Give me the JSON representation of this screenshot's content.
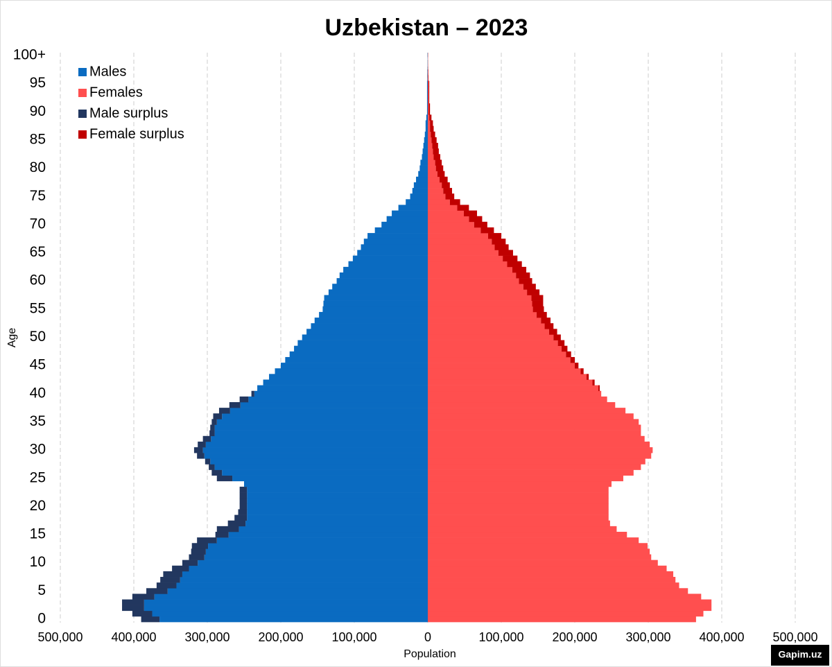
{
  "chart_data": {
    "type": "pyramid",
    "title": "Uzbekistan – 2023",
    "xlabel": "Population",
    "ylabel": "Age",
    "watermark": "Gapim.uz",
    "categories": [
      "0",
      null,
      null,
      null,
      null,
      "5",
      null,
      null,
      null,
      null,
      "10",
      null,
      null,
      null,
      null,
      "15",
      null,
      null,
      null,
      null,
      "20",
      null,
      null,
      null,
      null,
      "25",
      null,
      null,
      null,
      null,
      "30",
      null,
      null,
      null,
      null,
      "35",
      null,
      null,
      null,
      null,
      "40",
      null,
      null,
      null,
      null,
      "45",
      null,
      null,
      null,
      null,
      "50",
      null,
      null,
      null,
      null,
      "55",
      null,
      null,
      null,
      null,
      "60",
      null,
      null,
      null,
      null,
      "65",
      null,
      null,
      null,
      null,
      "70",
      null,
      null,
      null,
      null,
      "75",
      null,
      null,
      null,
      null,
      "80",
      null,
      null,
      null,
      null,
      "85",
      null,
      null,
      null,
      null,
      "90",
      null,
      null,
      null,
      null,
      "95",
      null,
      null,
      null,
      null,
      "100+"
    ],
    "series": [
      {
        "name": "Males",
        "color": "#0a6bc1",
        "values": [
          -365000,
          -375000,
          -386000,
          -386000,
          -372000,
          -354000,
          -342000,
          -337000,
          -334000,
          -325000,
          -313000,
          -304000,
          -302000,
          -299000,
          -287000,
          -271000,
          -257000,
          -248000,
          -246000,
          -246000,
          -246000,
          -246000,
          -246000,
          -246000,
          -250000,
          -266000,
          -280000,
          -290000,
          -296000,
          -304000,
          -306000,
          -302000,
          -295000,
          -290000,
          -290000,
          -287000,
          -280000,
          -269000,
          -255000,
          -244000,
          -236000,
          -232000,
          -224000,
          -216000,
          -208000,
          -200000,
          -194000,
          -188000,
          -182000,
          -177000,
          -171000,
          -165000,
          -159000,
          -154000,
          -148000,
          -143000,
          -142000,
          -141000,
          -135000,
          -130000,
          -124000,
          -120000,
          -115000,
          -108000,
          -102000,
          -96000,
          -91000,
          -87000,
          -82000,
          -72000,
          -63000,
          -56000,
          -49000,
          -40000,
          -30000,
          -24000,
          -21000,
          -19000,
          -16000,
          -13000,
          -11000,
          -10000,
          -8000,
          -7000,
          -6000,
          -5000,
          -4000,
          -3000,
          -3000,
          -2000,
          -1000,
          -1000,
          -1000,
          -1000,
          -1000,
          -1000,
          -500,
          -500,
          -300,
          -200,
          -300
        ]
      },
      {
        "name": "Females",
        "color": "#ff4f4f",
        "values": [
          365000,
          375000,
          386000,
          386000,
          372000,
          354000,
          342000,
          337000,
          334000,
          325000,
          313000,
          304000,
          302000,
          299000,
          287000,
          271000,
          257000,
          248000,
          246000,
          246000,
          246000,
          246000,
          246000,
          246000,
          250000,
          266000,
          280000,
          290000,
          296000,
          304000,
          306000,
          302000,
          295000,
          290000,
          290000,
          287000,
          280000,
          269000,
          255000,
          244000,
          236000,
          232000,
          224000,
          216000,
          208000,
          200000,
          194000,
          188000,
          182000,
          177000,
          171000,
          165000,
          159000,
          154000,
          148000,
          143000,
          142000,
          141000,
          135000,
          130000,
          124000,
          120000,
          115000,
          108000,
          102000,
          96000,
          91000,
          87000,
          82000,
          72000,
          63000,
          56000,
          49000,
          40000,
          30000,
          24000,
          21000,
          19000,
          16000,
          13000,
          11000,
          10000,
          8000,
          7000,
          6000,
          5000,
          4000,
          3000,
          3000,
          2000,
          1000,
          1000,
          1000,
          1000,
          1000,
          1000,
          500,
          500,
          300,
          200,
          300
        ]
      },
      {
        "name": "Male surplus",
        "color": "#22375f",
        "values": [
          -25000,
          -27000,
          -30000,
          -30000,
          -30000,
          -29000,
          -27000,
          -27000,
          -26000,
          -23000,
          -21000,
          -21000,
          -20000,
          -22000,
          -27000,
          -18000,
          -30000,
          -24000,
          -17000,
          -12000,
          -10000,
          -10000,
          -10000,
          -10000,
          0,
          -21000,
          -14000,
          -8000,
          -7000,
          -10000,
          -12000,
          -11000,
          -11000,
          -7000,
          -6000,
          -7000,
          -12000,
          -15000,
          -15000,
          -12000,
          -4000,
          0,
          0,
          0,
          0,
          0,
          0,
          0,
          0,
          0,
          0,
          0,
          0,
          0,
          0,
          0,
          0,
          0,
          0,
          0,
          0,
          0,
          0,
          0,
          0,
          0,
          0,
          0,
          0,
          0,
          0,
          0,
          0,
          0,
          0,
          0,
          0,
          0,
          0,
          0,
          0,
          0,
          0,
          0,
          0,
          0,
          0,
          0,
          0,
          0,
          0,
          0,
          0,
          0,
          0,
          0,
          0,
          0,
          0,
          0,
          0
        ]
      },
      {
        "name": "Female surplus",
        "color": "#c00000",
        "values": [
          0,
          0,
          0,
          0,
          0,
          0,
          0,
          0,
          0,
          0,
          0,
          0,
          0,
          0,
          0,
          0,
          0,
          0,
          0,
          0,
          0,
          0,
          0,
          0,
          0,
          0,
          0,
          0,
          0,
          0,
          0,
          0,
          0,
          0,
          0,
          0,
          0,
          0,
          0,
          0,
          0,
          2000,
          3000,
          3000,
          4000,
          5000,
          6000,
          7000,
          8000,
          9000,
          10000,
          11000,
          12000,
          13000,
          14000,
          15000,
          15000,
          16000,
          17000,
          17000,
          18000,
          19000,
          19000,
          20000,
          20000,
          20000,
          19000,
          19000,
          18000,
          18000,
          18000,
          18000,
          18000,
          16000,
          14000,
          12000,
          12000,
          11000,
          11000,
          10000,
          10000,
          9000,
          9000,
          8000,
          8000,
          7000,
          6000,
          5000,
          4000,
          3000,
          2000,
          2000,
          1000,
          1000,
          1000,
          1000,
          500,
          300,
          200,
          100,
          100
        ]
      }
    ],
    "xlim": [
      -500000,
      500000
    ],
    "xticks": [
      {
        "value": -500000,
        "label": "500,000"
      },
      {
        "value": -400000,
        "label": "400,000"
      },
      {
        "value": -300000,
        "label": "300,000"
      },
      {
        "value": -200000,
        "label": "200,000"
      },
      {
        "value": -100000,
        "label": "100,000"
      },
      0,
      {
        "value": 100000,
        "label": "100,000"
      },
      {
        "value": 200000,
        "label": "200,000"
      },
      {
        "value": 300000,
        "label": "300,000"
      },
      {
        "value": 400000,
        "label": "400,000"
      },
      {
        "value": 500000,
        "label": "500,000"
      }
    ],
    "grid": true,
    "legend": "upper left"
  }
}
